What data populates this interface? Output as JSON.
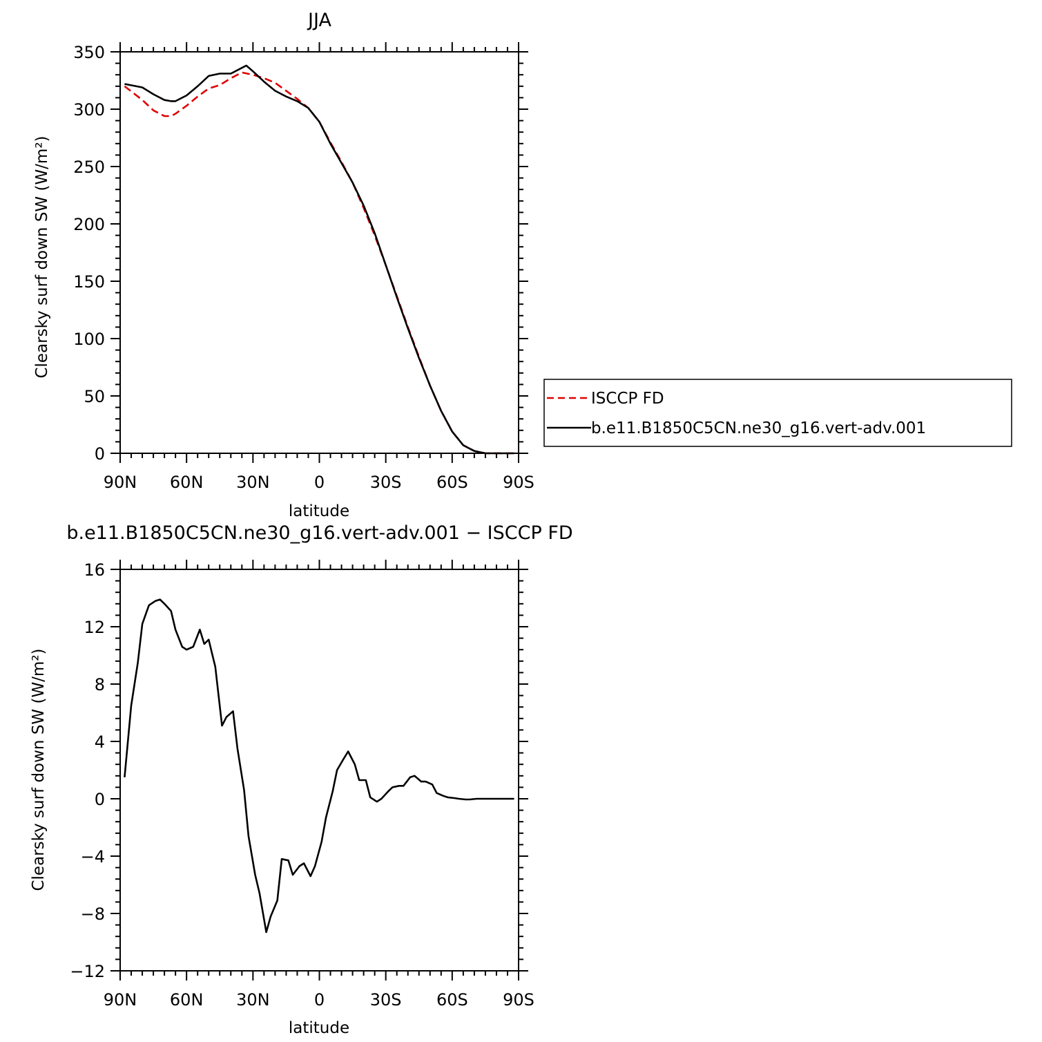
{
  "chart_data": [
    {
      "type": "line",
      "title": "JJA",
      "xlabel": "latitude",
      "ylabel": "Clearsky surf down SW (W/m²)",
      "xlim": [
        90,
        -90
      ],
      "ylim": [
        0,
        350
      ],
      "xticks": [
        90,
        60,
        30,
        0,
        -30,
        -60,
        -90
      ],
      "xtick_labels": [
        "90N",
        "60N",
        "30N",
        "0",
        "30S",
        "60S",
        "90S"
      ],
      "yticks": [
        0,
        50,
        100,
        150,
        200,
        250,
        300,
        350
      ],
      "ytick_labels": [
        "0",
        "50",
        "100",
        "150",
        "200",
        "250",
        "300",
        "350"
      ],
      "legend_position": "right",
      "series": [
        {
          "name": "ISCCP FD",
          "color": "#e00000",
          "dash": true,
          "x": [
            88,
            80,
            75,
            70,
            67,
            65,
            60,
            55,
            50,
            45,
            40,
            35,
            30,
            25,
            20,
            15,
            10,
            5,
            0,
            -5,
            -10,
            -15,
            -20,
            -25,
            -30,
            -35,
            -40,
            -45,
            -50,
            -55,
            -60,
            -65,
            -70,
            -75,
            -80,
            -85,
            -88
          ],
          "y": [
            320,
            308,
            299,
            294,
            294,
            296,
            303,
            311,
            318,
            321,
            327,
            332,
            330,
            327,
            323,
            316,
            309,
            301,
            289,
            271,
            254,
            236,
            214,
            190,
            164,
            137,
            110,
            84,
            59,
            37,
            19,
            7,
            2,
            0,
            0,
            0,
            0
          ]
        },
        {
          "name": "b.e11.B1850C5CN.ne30_g16.vert-adv.001",
          "color": "#000000",
          "dash": false,
          "x": [
            88,
            80,
            75,
            70,
            67,
            65,
            60,
            55,
            50,
            45,
            42,
            40,
            35,
            33,
            30,
            25,
            20,
            15,
            10,
            5,
            0,
            -5,
            -10,
            -15,
            -20,
            -25,
            -30,
            -35,
            -40,
            -45,
            -50,
            -55,
            -60,
            -65,
            -70,
            -75,
            -80,
            -85,
            -88
          ],
          "y": [
            322,
            319,
            313,
            308,
            307,
            307,
            312,
            320,
            329,
            331,
            331,
            331,
            336,
            338,
            333,
            324,
            316,
            311,
            307,
            301,
            289,
            270,
            253,
            236,
            216,
            192,
            164,
            136,
            109,
            83,
            59,
            37,
            19,
            7,
            2,
            0,
            0,
            0,
            0
          ]
        }
      ]
    },
    {
      "type": "line",
      "title": "b.e11.B1850C5CN.ne30_g16.vert-adv.001 − ISCCP FD",
      "xlabel": "latitude",
      "ylabel": "Clearsky surf down SW (W/m²)",
      "xlim": [
        90,
        -90
      ],
      "ylim": [
        -12,
        16
      ],
      "xticks": [
        90,
        60,
        30,
        0,
        -30,
        -60,
        -90
      ],
      "xtick_labels": [
        "90N",
        "60N",
        "30N",
        "0",
        "30S",
        "60S",
        "90S"
      ],
      "yticks": [
        -12,
        -8,
        -4,
        0,
        4,
        8,
        12,
        16
      ],
      "ytick_labels": [
        "−12",
        "−8",
        "−4",
        "0",
        "4",
        "8",
        "12",
        "16"
      ],
      "series": [
        {
          "name": "",
          "color": "#000000",
          "dash": false,
          "x": [
            88,
            85,
            82,
            80,
            77,
            74,
            72,
            70,
            67,
            65,
            62,
            60,
            57,
            54,
            52,
            50,
            47,
            44,
            42,
            39,
            37,
            34,
            32,
            29,
            27,
            24,
            22,
            19,
            17,
            14,
            12,
            9,
            7,
            4,
            2,
            -1,
            -3,
            -6,
            -8,
            -11,
            -13,
            -16,
            -18,
            -21,
            -23,
            -26,
            -28,
            -31,
            -33,
            -36,
            -38,
            -41,
            -43,
            -46,
            -48,
            -51,
            -53,
            -56,
            -58,
            -61,
            -63,
            -66,
            -68,
            -71,
            -73,
            -76,
            -78,
            -81,
            -83,
            -86,
            -88
          ],
          "y": [
            1.5,
            6.5,
            9.5,
            12.2,
            13.5,
            13.8,
            13.9,
            13.6,
            13.1,
            11.8,
            10.6,
            10.4,
            10.6,
            11.8,
            10.8,
            11.1,
            9.2,
            5.1,
            5.7,
            6.1,
            3.5,
            0.6,
            -2.6,
            -5.3,
            -6.6,
            -9.3,
            -8.2,
            -7.1,
            -4.2,
            -4.3,
            -5.3,
            -4.7,
            -4.5,
            -5.4,
            -4.7,
            -3.0,
            -1.3,
            0.5,
            2.0,
            2.8,
            3.3,
            2.4,
            1.3,
            1.3,
            0.1,
            -0.2,
            0.0,
            0.5,
            0.8,
            0.9,
            0.9,
            1.5,
            1.6,
            1.2,
            1.2,
            1.0,
            0.4,
            0.2,
            0.1,
            0.05,
            0.0,
            -0.05,
            -0.05,
            0.0,
            0.0,
            0.0,
            0.0,
            0.0,
            0.0,
            0.0,
            0.0
          ]
        }
      ]
    }
  ]
}
